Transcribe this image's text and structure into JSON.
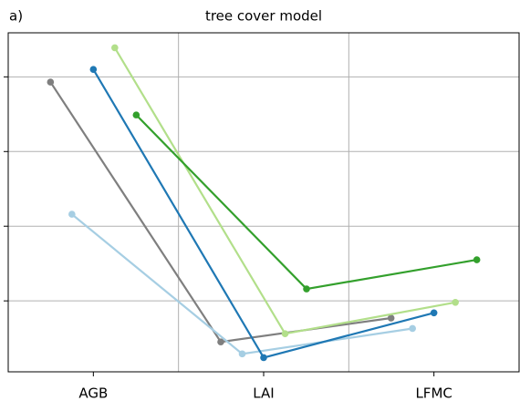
{
  "chart_data": {
    "type": "line",
    "panel_label": "a)",
    "title": "tree cover model",
    "categories": [
      "AGB",
      "LAI",
      "LFMC"
    ],
    "series": [
      {
        "color": "#7f7f7f",
        "values": [
          3.93,
          0.45,
          0.77
        ]
      },
      {
        "color": "#a6cee3",
        "values": [
          2.16,
          0.29,
          0.63
        ]
      },
      {
        "color": "#1f78b4",
        "values": [
          4.1,
          0.24,
          0.84
        ]
      },
      {
        "color": "#b2df8a",
        "values": [
          4.39,
          0.56,
          0.98
        ]
      },
      {
        "color": "#33a02c",
        "values": [
          3.49,
          1.16,
          1.55
        ]
      }
    ],
    "ylim": [
      0.05,
      4.59
    ],
    "yticks": [
      1,
      2,
      3,
      4
    ],
    "grid": true
  }
}
